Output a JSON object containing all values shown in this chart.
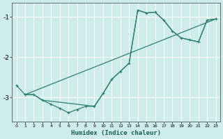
{
  "xlabel": "Humidex (Indice chaleur)",
  "bg_color": "#ceecea",
  "grid_color": "#ffffff",
  "line_color": "#2e7d6e",
  "xlim": [
    -0.5,
    23.5
  ],
  "ylim": [
    -3.6,
    -0.65
  ],
  "yticks": [
    -3,
    -2,
    -1
  ],
  "xticks": [
    0,
    1,
    2,
    3,
    4,
    5,
    6,
    7,
    8,
    9,
    10,
    11,
    12,
    13,
    14,
    15,
    16,
    17,
    18,
    19,
    20,
    21,
    22,
    23
  ],
  "curve1_x": [
    0,
    1,
    2,
    3,
    4,
    5,
    6,
    7,
    8,
    9,
    10,
    11,
    12,
    13,
    14,
    15,
    16,
    17,
    18,
    19,
    20,
    21,
    22,
    23
  ],
  "curve1_y": [
    -2.7,
    -2.93,
    -2.93,
    -3.07,
    -3.17,
    -3.27,
    -3.38,
    -3.3,
    -3.22,
    -3.22,
    -2.9,
    -2.55,
    -2.35,
    -2.15,
    -0.83,
    -0.9,
    -0.88,
    -1.08,
    -1.35,
    -1.52,
    -1.57,
    -1.62,
    -1.08,
    -1.05
  ],
  "curve2_x": [
    1,
    2,
    3,
    9,
    10,
    11,
    12,
    13,
    14,
    15,
    16,
    17,
    18,
    19,
    20,
    21,
    22,
    23
  ],
  "curve2_y": [
    -2.93,
    -2.93,
    -3.07,
    -3.22,
    -2.9,
    -2.55,
    -2.35,
    -2.15,
    -0.83,
    -0.9,
    -0.88,
    -1.08,
    -1.35,
    -1.52,
    -1.57,
    -1.62,
    -1.08,
    -1.05
  ],
  "line_x": [
    1,
    23
  ],
  "line_y": [
    -2.93,
    -1.05
  ]
}
